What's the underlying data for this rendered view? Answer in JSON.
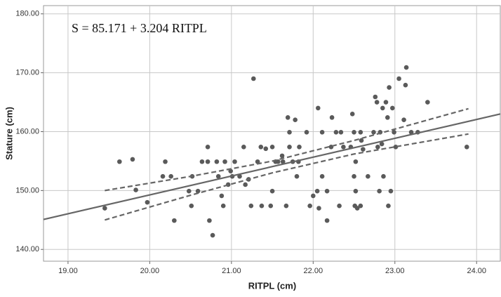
{
  "chart_data": {
    "type": "scatter",
    "annotation": "S = 85.171 + 3.204 RITPL",
    "x_label": "RITPL  (cm)",
    "y_label": "Stature  (cm)",
    "xlim": [
      18.7,
      24.29
    ],
    "ylim": [
      138.0,
      181.4
    ],
    "xticks": [
      {
        "value": 19,
        "label": "19.00"
      },
      {
        "value": 20,
        "label": "20.00"
      },
      {
        "value": 21,
        "label": "21.00"
      },
      {
        "value": 22,
        "label": "22.00"
      },
      {
        "value": 23,
        "label": "23.00"
      },
      {
        "value": 24,
        "label": "24.00"
      }
    ],
    "yticks": [
      {
        "value": 140,
        "label": "140.00"
      },
      {
        "value": 150,
        "label": "150.00"
      },
      {
        "value": 160,
        "label": "160.00"
      },
      {
        "value": 170,
        "label": "170.00"
      },
      {
        "value": 180,
        "label": "180.00"
      }
    ],
    "grid": true,
    "points": {
      "color": "#5a5a5a",
      "x": [
        19.45,
        19.63,
        19.79,
        19.83,
        19.97,
        20.19,
        20.16,
        20.26,
        20.3,
        20.48,
        20.52,
        20.51,
        20.59,
        20.64,
        20.71,
        20.71,
        20.73,
        20.77,
        20.82,
        20.84,
        20.88,
        20.9,
        20.92,
        20.96,
        20.99,
        21.01,
        21.04,
        21.1,
        21.15,
        21.17,
        21.21,
        21.24,
        21.27,
        21.32,
        21.36,
        21.37,
        21.42,
        21.48,
        21.5,
        21.5,
        21.54,
        21.57,
        21.62,
        21.63,
        21.67,
        21.69,
        21.71,
        21.71,
        21.75,
        21.78,
        21.8,
        21.82,
        21.83,
        21.92,
        21.96,
        22.0,
        22.05,
        22.06,
        22.07,
        22.11,
        22.11,
        22.17,
        22.17,
        22.22,
        22.23,
        22.28,
        22.32,
        22.34,
        22.37,
        22.46,
        22.48,
        22.5,
        22.5,
        22.51,
        22.52,
        22.52,
        22.54,
        22.58,
        22.58,
        22.59,
        22.61,
        22.67,
        22.74,
        22.76,
        22.78,
        22.79,
        22.81,
        22.82,
        22.84,
        22.85,
        22.86,
        22.89,
        22.91,
        22.92,
        22.93,
        22.95,
        22.97,
        22.99,
        23.01,
        23.05,
        23.11,
        23.14,
        23.13,
        23.2,
        23.28,
        23.4,
        23.88
      ],
      "values": [
        147.0,
        154.9,
        155.3,
        150.1,
        148.0,
        154.9,
        152.4,
        152.4,
        144.9,
        149.9,
        152.4,
        147.4,
        149.9,
        154.9,
        154.9,
        157.4,
        144.9,
        142.4,
        154.9,
        152.4,
        149.1,
        147.4,
        154.9,
        151.0,
        153.3,
        152.4,
        154.9,
        152.4,
        157.4,
        151.0,
        151.9,
        147.4,
        169.0,
        154.9,
        157.4,
        147.4,
        157.1,
        147.4,
        157.4,
        149.9,
        154.9,
        154.9,
        155.9,
        154.9,
        147.4,
        162.4,
        159.9,
        157.4,
        154.9,
        162.0,
        152.4,
        154.9,
        157.4,
        159.9,
        147.4,
        149.1,
        149.9,
        164.0,
        147.0,
        159.9,
        152.4,
        149.9,
        144.9,
        157.4,
        162.4,
        159.9,
        147.4,
        159.9,
        157.4,
        157.4,
        163.0,
        159.9,
        152.4,
        147.4,
        154.9,
        149.9,
        147.0,
        159.9,
        147.4,
        158.5,
        157.0,
        152.4,
        159.9,
        165.9,
        165.0,
        157.4,
        149.9,
        159.9,
        157.9,
        164.0,
        152.4,
        165.0,
        162.4,
        147.4,
        167.5,
        149.9,
        164.0,
        159.9,
        157.4,
        169.0,
        162.0,
        170.9,
        167.9,
        159.9,
        159.9,
        165.0,
        157.4
      ]
    },
    "fit": {
      "color": "#666666",
      "x": [
        18.7,
        24.29
      ],
      "values": [
        145.09,
        163.0
      ]
    },
    "ci_upper": {
      "color": "#666666",
      "x": [
        19.45,
        20.5,
        21.5,
        22.5,
        23.9
      ],
      "values": [
        150.0,
        152.4,
        155.0,
        158.5,
        163.9
      ]
    },
    "ci_lower": {
      "color": "#666666",
      "x": [
        19.45,
        20.5,
        21.5,
        22.5,
        23.9
      ],
      "values": [
        145.0,
        149.2,
        153.0,
        156.2,
        159.6
      ]
    }
  }
}
